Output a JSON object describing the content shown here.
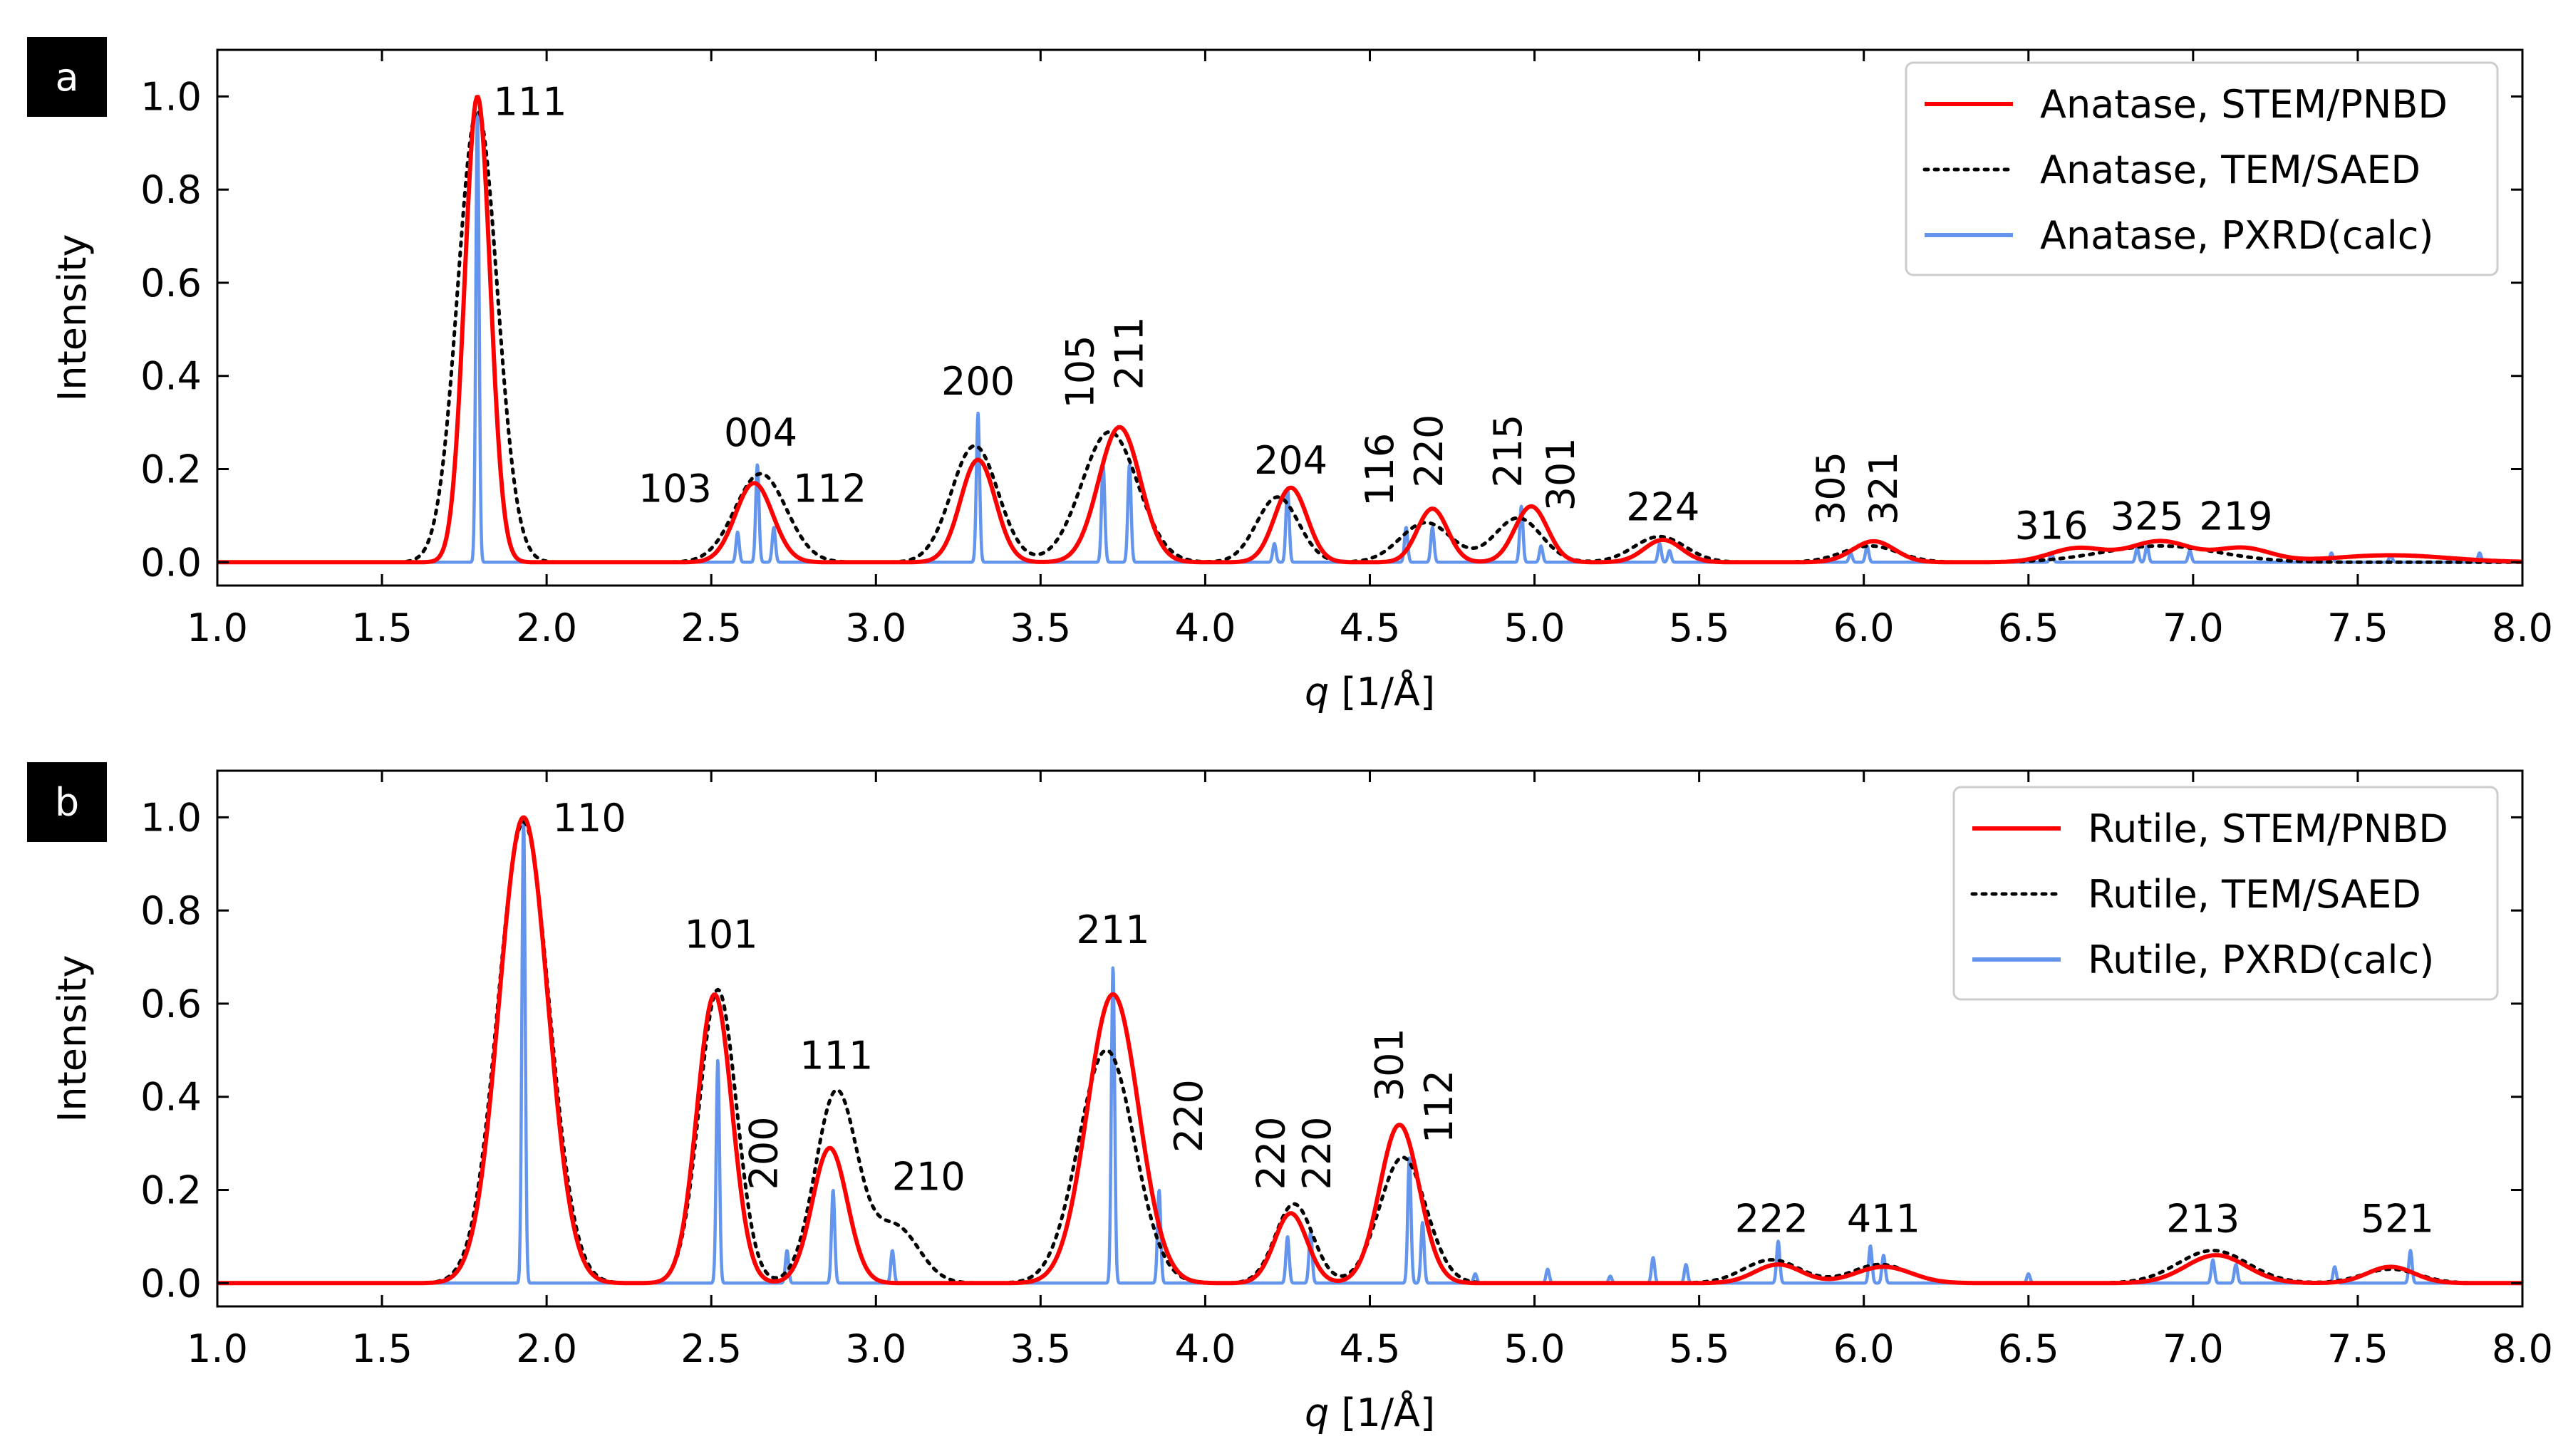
{
  "chart_data": [
    {
      "panel_label": "a",
      "type": "line",
      "title": "",
      "xlabel_italic": "q",
      "xlabel_rest": " [1/Å]",
      "ylabel": "Intensity",
      "xlim": [
        1.0,
        8.0
      ],
      "ylim": [
        -0.05,
        1.1
      ],
      "xticks": [
        1.0,
        1.5,
        2.0,
        2.5,
        3.0,
        3.5,
        4.0,
        4.5,
        5.0,
        5.5,
        6.0,
        6.5,
        7.0,
        7.5,
        8.0
      ],
      "xtick_labels": [
        "1.0",
        "1.5",
        "2.0",
        "2.5",
        "3.0",
        "3.5",
        "4.0",
        "4.5",
        "5.0",
        "5.5",
        "6.0",
        "6.5",
        "7.0",
        "7.5",
        "8.0"
      ],
      "yticks": [
        0.0,
        0.2,
        0.4,
        0.6,
        0.8,
        1.0
      ],
      "ytick_labels": [
        "0.0",
        "0.2",
        "0.4",
        "0.6",
        "0.8",
        "1.0"
      ],
      "legend_position": "top-right",
      "series": [
        {
          "name": "Anatase, STEM/PNBD",
          "style": "solid",
          "color": "#ff0000",
          "peaks": [
            [
              1.79,
              1.0,
              0.055
            ],
            [
              2.63,
              0.17,
              0.08
            ],
            [
              3.31,
              0.22,
              0.075
            ],
            [
              3.74,
              0.29,
              0.09
            ],
            [
              4.26,
              0.16,
              0.07
            ],
            [
              4.69,
              0.115,
              0.065
            ],
            [
              4.99,
              0.12,
              0.07
            ],
            [
              5.39,
              0.048,
              0.08
            ],
            [
              6.03,
              0.045,
              0.09
            ],
            [
              6.65,
              0.03,
              0.12
            ],
            [
              6.9,
              0.045,
              0.13
            ],
            [
              7.15,
              0.03,
              0.12
            ],
            [
              7.6,
              0.015,
              0.25
            ]
          ]
        },
        {
          "name": "Anatase, TEM/SAED",
          "style": "dotted",
          "color": "#000000",
          "peaks": [
            [
              1.79,
              0.97,
              0.085
            ],
            [
              2.65,
              0.19,
              0.11
            ],
            [
              3.3,
              0.25,
              0.1
            ],
            [
              3.71,
              0.28,
              0.12
            ],
            [
              4.22,
              0.14,
              0.09
            ],
            [
              4.67,
              0.085,
              0.11
            ],
            [
              4.95,
              0.095,
              0.1
            ],
            [
              5.38,
              0.055,
              0.11
            ],
            [
              6.02,
              0.035,
              0.12
            ],
            [
              6.9,
              0.035,
              0.25
            ]
          ]
        },
        {
          "name": "Anatase, PXRD(calc)",
          "style": "solid",
          "color": "#6495ed",
          "peaks": [
            [
              1.79,
              0.97,
              0.007
            ],
            [
              2.58,
              0.065,
              0.007
            ],
            [
              2.64,
              0.21,
              0.007
            ],
            [
              2.69,
              0.075,
              0.007
            ],
            [
              3.31,
              0.32,
              0.007
            ],
            [
              3.69,
              0.21,
              0.007
            ],
            [
              3.77,
              0.21,
              0.007
            ],
            [
              4.21,
              0.04,
              0.007
            ],
            [
              4.25,
              0.16,
              0.007
            ],
            [
              4.61,
              0.075,
              0.007
            ],
            [
              4.69,
              0.075,
              0.007
            ],
            [
              4.96,
              0.12,
              0.007
            ],
            [
              5.02,
              0.035,
              0.007
            ],
            [
              5.38,
              0.04,
              0.007
            ],
            [
              5.41,
              0.025,
              0.007
            ],
            [
              5.96,
              0.02,
              0.007
            ],
            [
              6.01,
              0.035,
              0.007
            ],
            [
              6.57,
              0.02,
              0.007
            ],
            [
              6.83,
              0.03,
              0.007
            ],
            [
              6.86,
              0.035,
              0.007
            ],
            [
              6.99,
              0.025,
              0.007
            ],
            [
              7.42,
              0.02,
              0.007
            ],
            [
              7.6,
              0.015,
              0.007
            ],
            [
              7.87,
              0.02,
              0.007
            ]
          ]
        }
      ],
      "annotations": [
        {
          "text": "111",
          "x": 1.95,
          "y": 0.96,
          "rotate": false
        },
        {
          "text": "004",
          "x": 2.65,
          "y": 0.25,
          "rotate": false
        },
        {
          "text": "103",
          "x": 2.39,
          "y": 0.13,
          "rotate": false
        },
        {
          "text": "112",
          "x": 2.86,
          "y": 0.13,
          "rotate": false
        },
        {
          "text": "200",
          "x": 3.31,
          "y": 0.36,
          "rotate": false
        },
        {
          "text": "204",
          "x": 4.26,
          "y": 0.19,
          "rotate": false
        },
        {
          "text": "224",
          "x": 5.39,
          "y": 0.09,
          "rotate": false
        },
        {
          "text": "316",
          "x": 6.57,
          "y": 0.05,
          "rotate": false
        },
        {
          "text": "325",
          "x": 6.86,
          "y": 0.07,
          "rotate": false
        },
        {
          "text": "219",
          "x": 7.13,
          "y": 0.07,
          "rotate": false
        },
        {
          "text": "105",
          "x": 3.66,
          "y": 0.33,
          "rotate": true
        },
        {
          "text": "211",
          "x": 3.81,
          "y": 0.37,
          "rotate": true
        },
        {
          "text": "116",
          "x": 4.57,
          "y": 0.12,
          "rotate": true
        },
        {
          "text": "220",
          "x": 4.72,
          "y": 0.16,
          "rotate": true
        },
        {
          "text": "215",
          "x": 4.96,
          "y": 0.16,
          "rotate": true
        },
        {
          "text": "301",
          "x": 5.12,
          "y": 0.11,
          "rotate": true
        },
        {
          "text": "305",
          "x": 5.94,
          "y": 0.08,
          "rotate": true
        },
        {
          "text": "321",
          "x": 6.1,
          "y": 0.08,
          "rotate": true
        }
      ]
    },
    {
      "panel_label": "b",
      "type": "line",
      "title": "",
      "xlabel_italic": "q",
      "xlabel_rest": " [1/Å]",
      "ylabel": "Intensity",
      "xlim": [
        1.0,
        8.0
      ],
      "ylim": [
        -0.05,
        1.1
      ],
      "xticks": [
        1.0,
        1.5,
        2.0,
        2.5,
        3.0,
        3.5,
        4.0,
        4.5,
        5.0,
        5.5,
        6.0,
        6.5,
        7.0,
        7.5,
        8.0
      ],
      "xtick_labels": [
        "1.0",
        "1.5",
        "2.0",
        "2.5",
        "3.0",
        "3.5",
        "4.0",
        "4.5",
        "5.0",
        "5.5",
        "6.0",
        "6.5",
        "7.0",
        "7.5",
        "8.0"
      ],
      "yticks": [
        0.0,
        0.2,
        0.4,
        0.6,
        0.8,
        1.0
      ],
      "ytick_labels": [
        "0.0",
        "0.2",
        "0.4",
        "0.6",
        "0.8",
        "1.0"
      ],
      "legend_position": "top-right",
      "series": [
        {
          "name": "Rutile, STEM/PNBD",
          "style": "solid",
          "color": "#ff0000",
          "peaks": [
            [
              1.93,
              1.0,
              0.105
            ],
            [
              2.51,
              0.62,
              0.075
            ],
            [
              2.86,
              0.29,
              0.075
            ],
            [
              3.72,
              0.62,
              0.11
            ],
            [
              4.26,
              0.15,
              0.07
            ],
            [
              4.59,
              0.34,
              0.085
            ],
            [
              5.74,
              0.04,
              0.1
            ],
            [
              6.06,
              0.035,
              0.12
            ],
            [
              7.07,
              0.06,
              0.13
            ],
            [
              7.6,
              0.035,
              0.1
            ]
          ]
        },
        {
          "name": "Rutile, TEM/SAED",
          "style": "dotted",
          "color": "#000000",
          "peaks": [
            [
              1.93,
              0.99,
              0.11
            ],
            [
              2.52,
              0.63,
              0.08
            ],
            [
              2.88,
              0.41,
              0.09
            ],
            [
              3.06,
              0.12,
              0.1
            ],
            [
              3.7,
              0.5,
              0.12
            ],
            [
              4.27,
              0.17,
              0.08
            ],
            [
              4.6,
              0.27,
              0.1
            ],
            [
              5.72,
              0.05,
              0.12
            ],
            [
              6.05,
              0.04,
              0.12
            ],
            [
              7.06,
              0.07,
              0.15
            ],
            [
              7.6,
              0.03,
              0.12
            ]
          ]
        },
        {
          "name": "Rutile, PXRD(calc)",
          "style": "solid",
          "color": "#6495ed",
          "peaks": [
            [
              1.93,
              1.0,
              0.007
            ],
            [
              2.52,
              0.48,
              0.007
            ],
            [
              2.73,
              0.07,
              0.007
            ],
            [
              2.87,
              0.2,
              0.007
            ],
            [
              3.05,
              0.07,
              0.007
            ],
            [
              3.72,
              0.68,
              0.007
            ],
            [
              3.86,
              0.2,
              0.007
            ],
            [
              4.25,
              0.1,
              0.007
            ],
            [
              4.32,
              0.11,
              0.007
            ],
            [
              4.62,
              0.27,
              0.007
            ],
            [
              4.66,
              0.13,
              0.007
            ],
            [
              4.82,
              0.02,
              0.007
            ],
            [
              5.04,
              0.03,
              0.007
            ],
            [
              5.23,
              0.015,
              0.007
            ],
            [
              5.36,
              0.055,
              0.007
            ],
            [
              5.46,
              0.04,
              0.007
            ],
            [
              5.74,
              0.09,
              0.007
            ],
            [
              6.02,
              0.08,
              0.007
            ],
            [
              6.06,
              0.06,
              0.007
            ],
            [
              6.5,
              0.02,
              0.007
            ],
            [
              7.06,
              0.05,
              0.007
            ],
            [
              7.13,
              0.04,
              0.007
            ],
            [
              7.43,
              0.035,
              0.007
            ],
            [
              7.66,
              0.07,
              0.007
            ]
          ]
        }
      ],
      "annotations": [
        {
          "text": "110",
          "x": 2.13,
          "y": 0.97,
          "rotate": false
        },
        {
          "text": "101",
          "x": 2.53,
          "y": 0.72,
          "rotate": false
        },
        {
          "text": "111",
          "x": 2.88,
          "y": 0.46,
          "rotate": false
        },
        {
          "text": "210",
          "x": 3.16,
          "y": 0.2,
          "rotate": false
        },
        {
          "text": "211",
          "x": 3.72,
          "y": 0.73,
          "rotate": false
        },
        {
          "text": "222",
          "x": 5.72,
          "y": 0.11,
          "rotate": false
        },
        {
          "text": "411",
          "x": 6.06,
          "y": 0.11,
          "rotate": false
        },
        {
          "text": "213",
          "x": 7.03,
          "y": 0.11,
          "rotate": false
        },
        {
          "text": "521",
          "x": 7.62,
          "y": 0.11,
          "rotate": false
        },
        {
          "text": "200",
          "x": 2.7,
          "y": 0.2,
          "rotate": true
        },
        {
          "text": "220",
          "x": 3.99,
          "y": 0.28,
          "rotate": true
        },
        {
          "text": "220",
          "x": 4.24,
          "y": 0.2,
          "rotate": true
        },
        {
          "text": "220",
          "x": 4.38,
          "y": 0.2,
          "rotate": true
        },
        {
          "text": "301",
          "x": 4.6,
          "y": 0.39,
          "rotate": true
        },
        {
          "text": "112",
          "x": 4.75,
          "y": 0.3,
          "rotate": true
        }
      ]
    }
  ]
}
